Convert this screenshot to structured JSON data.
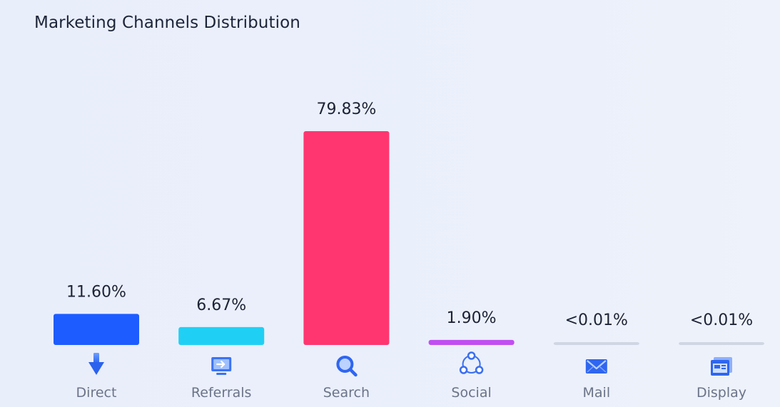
{
  "title": "Marketing Channels Distribution",
  "chart_data": {
    "type": "bar",
    "categories": [
      "Direct",
      "Referrals",
      "Search",
      "Social",
      "Mail",
      "Display"
    ],
    "values": [
      11.6,
      6.67,
      79.83,
      1.9,
      0.01,
      0.01
    ],
    "data_labels": [
      "11.60%",
      "6.67%",
      "79.83%",
      "1.90%",
      "<0.01%",
      "<0.01%"
    ],
    "icons": [
      "arrow-down-icon",
      "referral-screen-icon",
      "search-icon",
      "social-network-icon",
      "mail-icon",
      "display-window-icon"
    ],
    "colors": [
      "#1d5cff",
      "#20d0f4",
      "#ff3670",
      "#c14ef1",
      "#d0d6e3",
      "#d0d6e3"
    ],
    "ylim": [
      0,
      79.83
    ],
    "grid": false,
    "legend": "none"
  }
}
